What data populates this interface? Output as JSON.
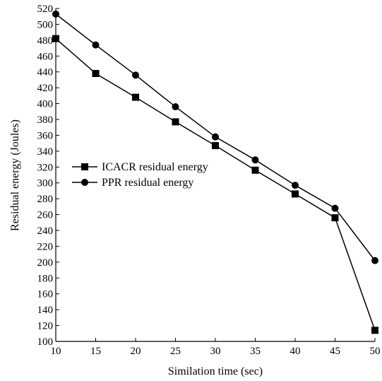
{
  "chart_data": {
    "type": "line",
    "title": "",
    "xlabel": "Similation time (sec)",
    "ylabel": "Residual energy (Joules)",
    "xlim": [
      10,
      50
    ],
    "ylim": [
      100,
      520
    ],
    "x": [
      10,
      15,
      20,
      25,
      30,
      35,
      40,
      45,
      50
    ],
    "xticks": [
      "10",
      "15",
      "20",
      "25",
      "30",
      "35",
      "40",
      "45",
      "50"
    ],
    "yticks": [
      "100",
      "120",
      "140",
      "160",
      "180",
      "200",
      "220",
      "240",
      "260",
      "280",
      "300",
      "320",
      "340",
      "360",
      "380",
      "400",
      "420",
      "440",
      "460",
      "480",
      "500",
      "520"
    ],
    "grid": false,
    "legend_position": "center-left",
    "series": [
      {
        "name": "ICACR residual energy",
        "marker": "square",
        "color": "#000000",
        "values": [
          482,
          438,
          408,
          377,
          347,
          316,
          286,
          256,
          114
        ]
      },
      {
        "name": "PPR residual energy",
        "marker": "circle",
        "color": "#000000",
        "values": [
          513,
          474,
          436,
          396,
          358,
          329,
          297,
          268,
          202
        ]
      }
    ]
  }
}
